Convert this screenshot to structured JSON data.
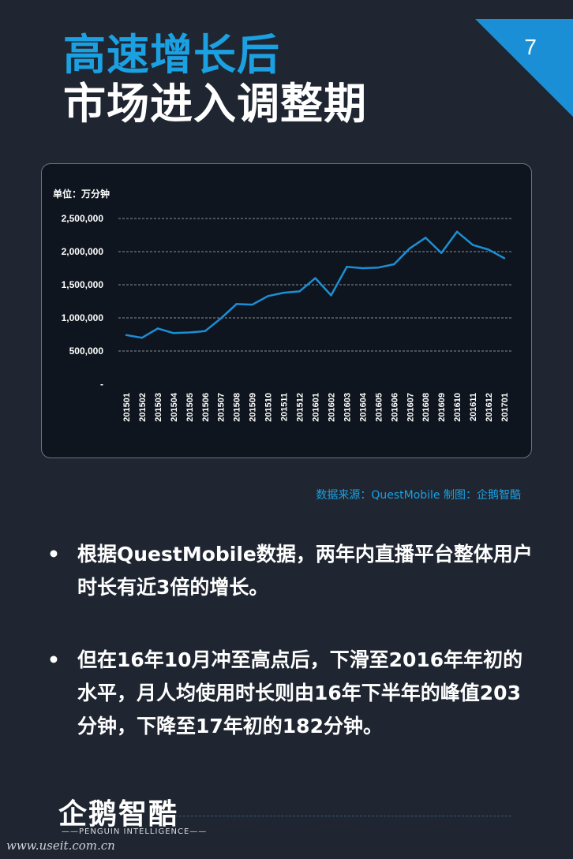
{
  "page_number": "7",
  "title_line1": "高速增长后",
  "title_line2": "市场进入调整期",
  "chart_data": {
    "type": "line",
    "unit_label": "单位：万分钟",
    "categories": [
      "201501",
      "201502",
      "201503",
      "201504",
      "201505",
      "201506",
      "201507",
      "201508",
      "201509",
      "201510",
      "201511",
      "201512",
      "201601",
      "201602",
      "201603",
      "201604",
      "201605",
      "201606",
      "201607",
      "201608",
      "201609",
      "201610",
      "201611",
      "201612",
      "201701"
    ],
    "series": [
      {
        "values": [
          740000,
          700000,
          840000,
          770000,
          780000,
          800000,
          990000,
          1210000,
          1200000,
          1330000,
          1380000,
          1400000,
          1600000,
          1340000,
          1770000,
          1750000,
          1760000,
          1810000,
          2050000,
          2210000,
          1980000,
          2300000,
          2100000,
          2030000,
          1900000
        ]
      }
    ],
    "ylim": [
      0,
      2500000
    ],
    "y_ticks": [
      "-",
      "500,000",
      "1,000,000",
      "1,500,000",
      "2,000,000",
      "2,500,000"
    ],
    "y_tick_values": [
      0,
      500000,
      1000000,
      1500000,
      2000000,
      2500000
    ],
    "grid": true,
    "line_color": "#1b8fd6"
  },
  "source_text": "数据来源：QuestMobile 制图：企鹅智酷",
  "bullets": [
    {
      "symbol": "•",
      "text": "根据QuestMobile数据，两年内直播平台整体用户时长有近3倍的增长。"
    },
    {
      "symbol": "•",
      "text": "但在16年10月冲至高点后，下滑至2016年年初的水平，月人均使用时长则由16年下半年的峰值203分钟，下降至17年初的182分钟。"
    }
  ],
  "logo_text": "企鹅智酷",
  "logo_subtext": "——PENGUIN INTELLIGENCE——",
  "watermark": "www.useit.com.cn",
  "colors": {
    "background": "#1f2631",
    "accent": "#1ba0e2",
    "corner": "#1b8fd6"
  }
}
